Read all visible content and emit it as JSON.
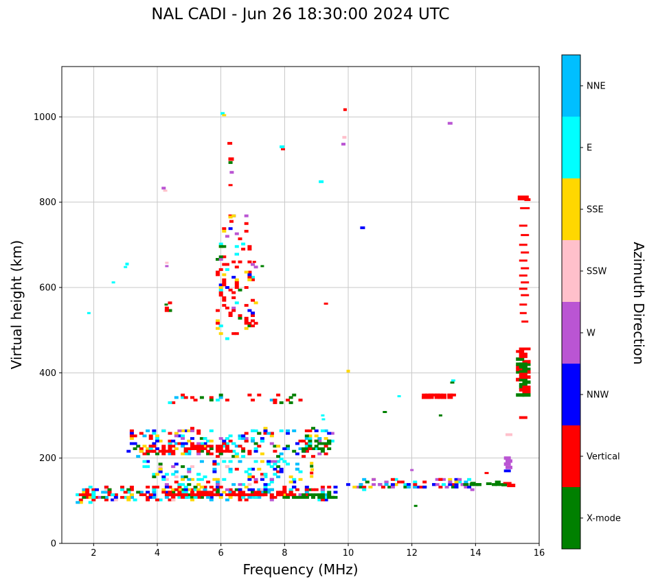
{
  "chart_data": {
    "type": "scatter",
    "title": "NAL CADI - Jun 26 18:30:00 2024 UTC",
    "xlabel": "Frequency (MHz)",
    "ylabel": "Virtual height (km)",
    "xlim": [
      1,
      16
    ],
    "ylim": [
      0,
      1118
    ],
    "xticks": [
      2,
      4,
      6,
      8,
      10,
      12,
      14,
      16
    ],
    "yticks": [
      0,
      200,
      400,
      600,
      800,
      1000
    ],
    "grid": true,
    "grid_color": "#c9c9c9",
    "marker": {
      "width": 6,
      "height": 4
    },
    "colorbar": {
      "label": "Azimuth Direction",
      "categories": [
        {
          "name": "NNE",
          "color": "#00bfff"
        },
        {
          "name": "E",
          "color": "#00ffff"
        },
        {
          "name": "SSE",
          "color": "#ffd700"
        },
        {
          "name": "SSW",
          "color": "#ffc0cb"
        },
        {
          "name": "W",
          "color": "#ba55d3"
        },
        {
          "name": "NNW",
          "color": "#0000ff"
        },
        {
          "name": "Vertical",
          "color": "#ff0000"
        },
        {
          "name": "X-mode",
          "color": "#008000"
        }
      ]
    },
    "clusters": [
      {
        "name": "e-region-left",
        "seed": 11,
        "n": 30,
        "f": [
          1.45,
          2.1
        ],
        "h": [
          95,
          130
        ],
        "colors": {
          "Vertical": 0.4,
          "E": 0.25,
          "SSE": 0.15,
          "NNE": 0.1,
          "X-mode": 0.1
        }
      },
      {
        "name": "e-region-main",
        "seed": 12,
        "n": 260,
        "f": [
          2.1,
          9.6
        ],
        "h": [
          103,
          133
        ],
        "colors": {
          "Vertical": 0.3,
          "E": 0.17,
          "NNE": 0.12,
          "NNW": 0.12,
          "X-mode": 0.12,
          "SSE": 0.08,
          "W": 0.05,
          "SSW": 0.04
        }
      },
      {
        "name": "e-region-red-trace",
        "seed": 13,
        "n": 90,
        "f": [
          4.2,
          8.3
        ],
        "h": [
          112,
          118
        ],
        "colors": {
          "Vertical": 1
        }
      },
      {
        "name": "e-region-green-trace",
        "seed": 14,
        "n": 35,
        "f": [
          8.0,
          9.6
        ],
        "h": [
          107,
          113
        ],
        "colors": {
          "X-mode": 1
        }
      },
      {
        "name": "e-region-upper-scatter",
        "seed": 15,
        "n": 130,
        "f": [
          3.6,
          8.6
        ],
        "h": [
          133,
          196
        ],
        "colors": {
          "E": 0.3,
          "NNE": 0.18,
          "NNW": 0.15,
          "SSE": 0.1,
          "Vertical": 0.1,
          "W": 0.07,
          "X-mode": 0.06,
          "SSW": 0.04
        }
      },
      {
        "name": "mid-band-10-14MHz",
        "seed": 16,
        "n": 80,
        "f": [
          9.9,
          13.9
        ],
        "h": [
          128,
          152
        ],
        "colors": {
          "W": 0.28,
          "Vertical": 0.22,
          "NNW": 0.15,
          "X-mode": 0.13,
          "E": 0.1,
          "SSE": 0.07,
          "NNE": 0.05
        }
      },
      {
        "name": "green-dashes-14-15MHz",
        "seed": 17,
        "n": 14,
        "f": [
          13.6,
          15.25
        ],
        "h": [
          136,
          144
        ],
        "w": 8,
        "colors": {
          "X-mode": 1
        }
      },
      {
        "name": "f-region-band",
        "seed": 18,
        "n": 230,
        "f": [
          3.1,
          9.5
        ],
        "h": [
          204,
          268
        ],
        "colors": {
          "Vertical": 0.28,
          "NNW": 0.2,
          "E": 0.16,
          "NNE": 0.11,
          "SSE": 0.1,
          "X-mode": 0.09,
          "W": 0.06
        }
      },
      {
        "name": "f-region-red-trace",
        "seed": 19,
        "n": 55,
        "f": [
          3.7,
          6.4
        ],
        "h": [
          212,
          230
        ],
        "colors": {
          "Vertical": 1
        }
      },
      {
        "name": "f-region-green-cluster",
        "seed": 20,
        "n": 28,
        "f": [
          8.6,
          9.45
        ],
        "h": [
          215,
          240
        ],
        "colors": {
          "X-mode": 0.8,
          "Vertical": 0.1,
          "NNW": 0.1
        }
      },
      {
        "name": "echoes-330-350km",
        "seed": 21,
        "n": 30,
        "f": [
          4.4,
          8.6
        ],
        "h": [
          328,
          352
        ],
        "colors": {
          "Vertical": 0.45,
          "X-mode": 0.2,
          "E": 0.2,
          "NNE": 0.08,
          "W": 0.07
        }
      },
      {
        "name": "red-trace-13MHz-345km",
        "seed": 22,
        "n": 26,
        "f": [
          12.35,
          13.45
        ],
        "h": [
          340,
          352
        ],
        "w": 8,
        "colors": {
          "Vertical": 1
        }
      },
      {
        "name": "spread-f-column",
        "seed": 23,
        "n": 95,
        "f": [
          5.85,
          7.15
        ],
        "h": [
          475,
          705
        ],
        "colors": {
          "Vertical": 0.55,
          "SSE": 0.12,
          "X-mode": 0.1,
          "E": 0.08,
          "W": 0.08,
          "NNW": 0.07
        }
      },
      {
        "name": "spread-f-top",
        "seed": 24,
        "n": 12,
        "f": [
          6.05,
          6.95
        ],
        "h": [
          705,
          772
        ],
        "colors": {
          "Vertical": 0.5,
          "SSE": 0.2,
          "W": 0.15,
          "NNW": 0.15
        }
      },
      {
        "name": "echoes-4.4MHz-550km",
        "seed": 25,
        "n": 6,
        "f": [
          4.15,
          4.55
        ],
        "h": [
          538,
          568
        ],
        "colors": {
          "Vertical": 0.6,
          "X-mode": 0.4
        }
      },
      {
        "name": "right-edge-block-350-430km",
        "seed": 26,
        "n": 38,
        "f": [
          15.42,
          15.62
        ],
        "h": [
          345,
          432
        ],
        "w": 12,
        "ht": 5,
        "colors": {
          "Vertical": 0.6,
          "X-mode": 0.4
        }
      },
      {
        "name": "right-edge-450km",
        "seed": 27,
        "n": 8,
        "f": [
          15.42,
          15.6
        ],
        "h": [
          435,
          458
        ],
        "w": 12,
        "colors": {
          "Vertical": 1
        }
      }
    ],
    "points": [
      [
        15.5,
        810,
        "Vertical",
        16,
        7
      ],
      [
        15.63,
        806,
        "Vertical",
        9,
        4
      ],
      [
        15.55,
        786,
        "Vertical",
        14,
        3
      ],
      [
        15.5,
        745,
        "Vertical",
        12,
        3
      ],
      [
        15.55,
        723,
        "Vertical",
        12,
        3
      ],
      [
        15.5,
        700,
        "Vertical",
        12,
        3
      ],
      [
        15.55,
        682,
        "Vertical",
        12,
        3
      ],
      [
        15.5,
        663,
        "Vertical",
        12,
        3
      ],
      [
        15.55,
        645,
        "Vertical",
        12,
        3
      ],
      [
        15.5,
        628,
        "Vertical",
        12,
        3
      ],
      [
        15.55,
        612,
        "Vertical",
        12,
        3
      ],
      [
        15.5,
        597,
        "Vertical",
        12,
        3
      ],
      [
        15.55,
        582,
        "Vertical",
        12,
        3
      ],
      [
        15.5,
        560,
        "Vertical",
        11,
        3
      ],
      [
        15.5,
        540,
        "Vertical",
        10,
        3
      ],
      [
        15.55,
        520,
        "Vertical",
        10,
        3
      ],
      [
        15.5,
        295,
        "Vertical",
        12,
        4
      ],
      [
        15.05,
        255,
        "SSW",
        10,
        4
      ],
      [
        15.0,
        200,
        "W",
        10,
        5
      ],
      [
        15.05,
        193,
        "W",
        10,
        5
      ],
      [
        15.0,
        186,
        "W",
        10,
        5
      ],
      [
        15.05,
        178,
        "W",
        10,
        5
      ],
      [
        15.0,
        170,
        "NNW",
        10,
        4
      ],
      [
        15.0,
        140,
        "Vertical",
        12,
        5
      ],
      [
        15.12,
        136,
        "Vertical",
        12,
        5
      ],
      [
        14.9,
        137,
        "X-mode",
        8,
        4
      ],
      [
        14.42,
        140,
        "X-mode",
        8,
        4
      ],
      [
        13.92,
        141,
        "X-mode",
        8,
        4
      ],
      [
        14.35,
        165,
        "Vertical",
        6,
        3
      ],
      [
        4.2,
        833,
        "W",
        6,
        4
      ],
      [
        4.25,
        827,
        "SSW",
        6,
        3
      ],
      [
        6.28,
        938,
        "Vertical",
        7,
        4
      ],
      [
        6.32,
        901,
        "Vertical",
        8,
        5
      ],
      [
        6.3,
        893,
        "X-mode",
        6,
        4
      ],
      [
        6.34,
        870,
        "W",
        6,
        4
      ],
      [
        6.3,
        840,
        "Vertical",
        6,
        3
      ],
      [
        6.05,
        1008,
        "E",
        6,
        4
      ],
      [
        6.1,
        1004,
        "SSE",
        6,
        3
      ],
      [
        7.92,
        930,
        "E",
        7,
        4
      ],
      [
        7.95,
        924,
        "Vertical",
        6,
        3
      ],
      [
        9.9,
        1017,
        "Vertical",
        5,
        4
      ],
      [
        9.88,
        952,
        "SSW",
        6,
        4
      ],
      [
        9.85,
        936,
        "W",
        6,
        4
      ],
      [
        9.15,
        848,
        "E",
        7,
        4
      ],
      [
        13.2,
        985,
        "W",
        7,
        4
      ],
      [
        10.45,
        740,
        "NNW",
        7,
        4
      ],
      [
        6.3,
        765,
        "SSE",
        6,
        4
      ],
      [
        6.33,
        755,
        "Vertical",
        6,
        4
      ],
      [
        3.05,
        655,
        "E",
        5,
        4
      ],
      [
        3.0,
        648,
        "E",
        5,
        3
      ],
      [
        2.62,
        612,
        "E",
        5,
        3
      ],
      [
        1.85,
        540,
        "E",
        5,
        3
      ],
      [
        4.3,
        658,
        "SSW",
        5,
        3
      ],
      [
        4.3,
        650,
        "W",
        5,
        3
      ],
      [
        4.28,
        560,
        "X-mode",
        5,
        3
      ],
      [
        9.3,
        562,
        "Vertical",
        6,
        3
      ],
      [
        10.0,
        404,
        "SSE",
        5,
        4
      ],
      [
        9.2,
        300,
        "E",
        5,
        3
      ],
      [
        9.22,
        291,
        "E",
        5,
        3
      ],
      [
        11.6,
        345,
        "E",
        5,
        3
      ],
      [
        13.3,
        382,
        "E",
        6,
        3
      ],
      [
        13.27,
        377,
        "X-mode",
        6,
        3
      ],
      [
        11.15,
        308,
        "X-mode",
        6,
        3
      ],
      [
        12.9,
        300,
        "X-mode",
        5,
        3
      ],
      [
        12.0,
        172,
        "W",
        5,
        3
      ],
      [
        12.12,
        88,
        "X-mode",
        5,
        3
      ],
      [
        8.85,
        188,
        "SSE",
        5,
        4
      ],
      [
        8.85,
        181,
        "X-mode",
        5,
        4
      ],
      [
        8.87,
        173,
        "SSE",
        5,
        4
      ],
      [
        8.85,
        165,
        "Vertical",
        5,
        4
      ],
      [
        8.85,
        157,
        "SSE",
        5,
        4
      ],
      [
        7.3,
        650,
        "X-mode",
        5,
        3
      ],
      [
        7.05,
        660,
        "Vertical",
        5,
        3
      ]
    ]
  }
}
